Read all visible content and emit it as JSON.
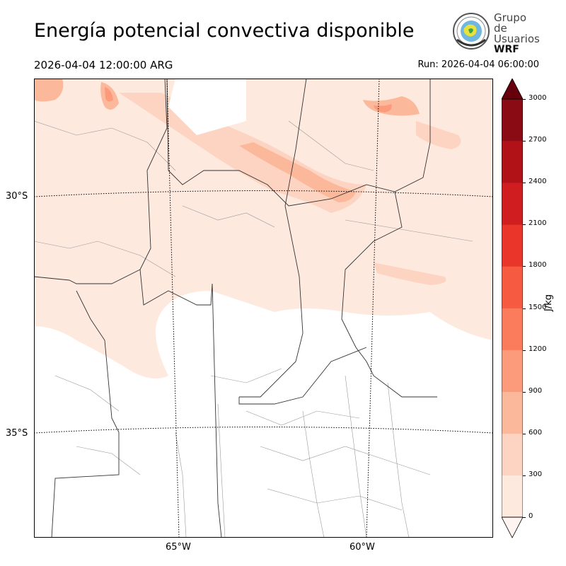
{
  "header": {
    "title": "Energía potencial convectiva disponible",
    "valid_time": "2026-04-04 12:00:00 ARG",
    "run_time": "Run: 2026-04-04 06:00:00"
  },
  "logo": {
    "line1": "Grupo de",
    "line2": "Usuarios",
    "line3": "WRF"
  },
  "map": {
    "variable": "CAPE",
    "lat_labels": [
      "30°S",
      "35°S"
    ],
    "lon_labels": [
      "65°W",
      "60°W"
    ]
  },
  "colorbar": {
    "unit": "J/kg",
    "ticks": [
      "0",
      "300",
      "600",
      "900",
      "1200",
      "1500",
      "1800",
      "2100",
      "2400",
      "2700",
      "3000"
    ],
    "colors": [
      "#fee9df",
      "#fdd4c2",
      "#fcb89a",
      "#fc9b7b",
      "#fb7c5c",
      "#f65a40",
      "#ea362a",
      "#d01d1f",
      "#b01218",
      "#8a0b14",
      "#67000d"
    ],
    "extend": "both"
  }
}
